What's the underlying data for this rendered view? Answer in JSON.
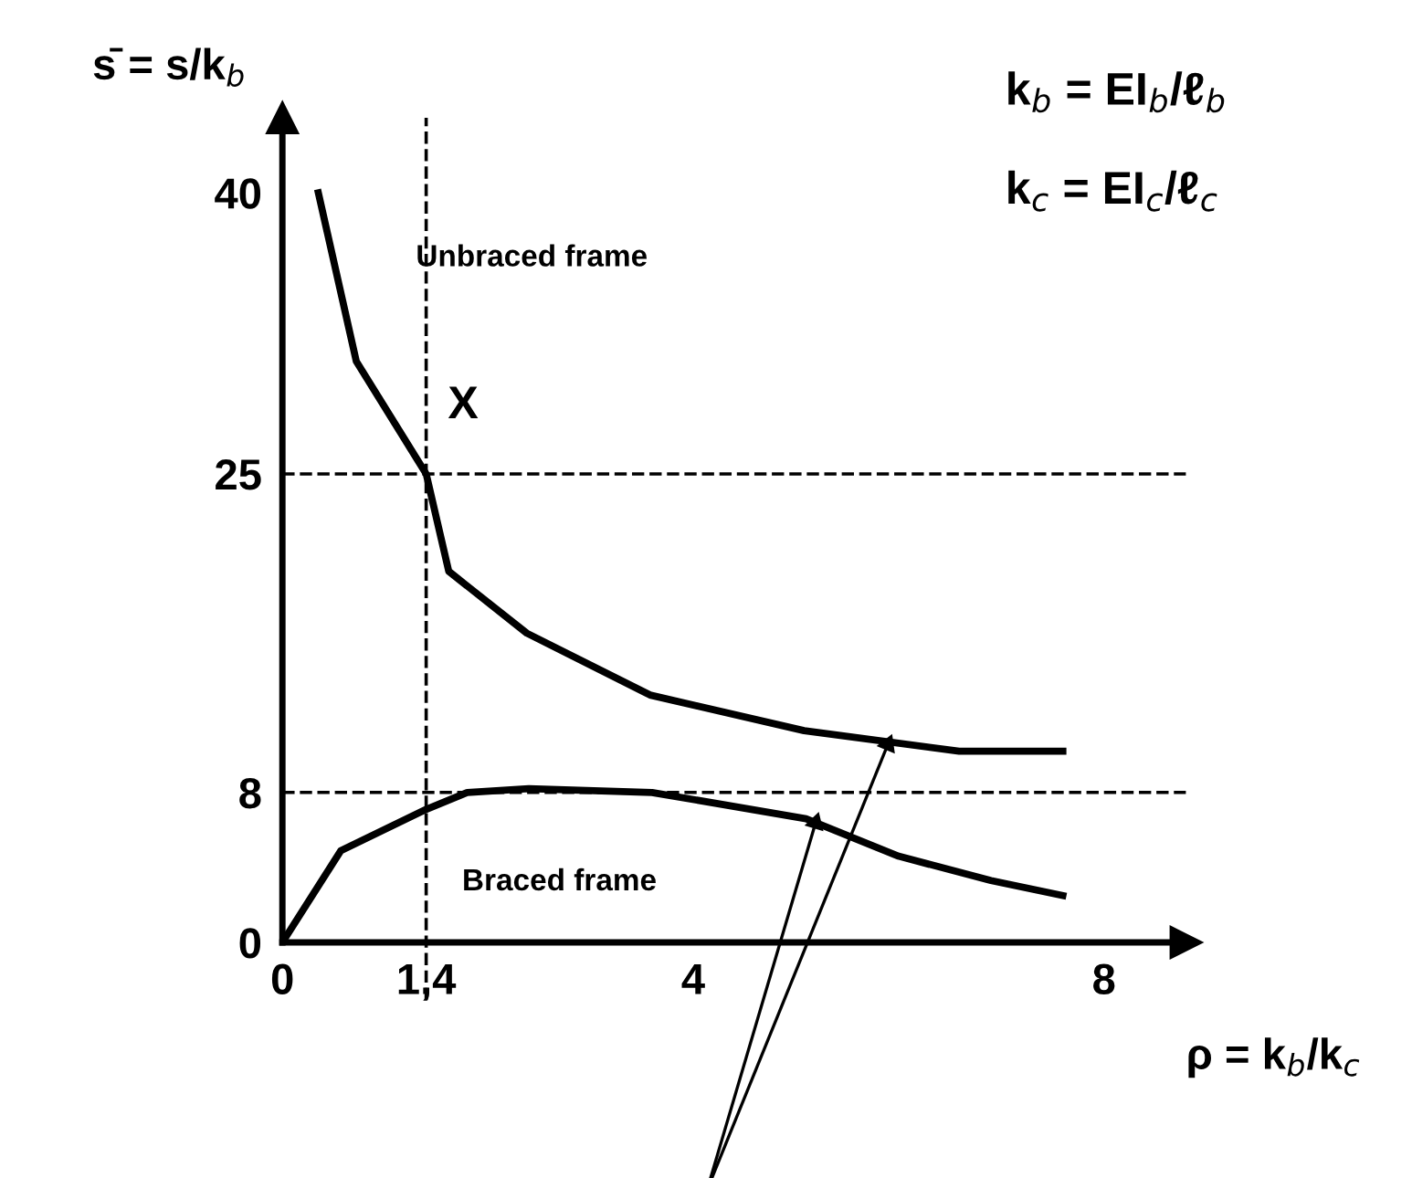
{
  "chart_data": {
    "type": "line",
    "xlabel": "ρ = k$_{b}$/k$_{c}$",
    "ylabel": "s̄ = s/k$_{b}$",
    "series": [
      {
        "name": "Unbraced frame",
        "color": "#000000",
        "x": [
          0.35,
          0.72,
          1.4,
          1.62,
          2.38,
          3.58,
          5.08,
          6.59,
          7.6
        ],
        "values": [
          40,
          31,
          25,
          19.8,
          16.5,
          13.2,
          11.3,
          10.2,
          10.2
        ]
      },
      {
        "name": "Braced frame",
        "color": "#000000",
        "x": [
          0,
          0.57,
          1.4,
          1.8,
          2.4,
          3.6,
          5.1,
          6,
          6.9,
          7.6
        ],
        "values": [
          0,
          4.9,
          7.1,
          8,
          8.2,
          8,
          6.6,
          4.6,
          3.3,
          2.5
        ]
      }
    ],
    "xlim": [
      0,
      8.8
    ],
    "ylim": [
      0,
      44
    ],
    "xticks": [
      0,
      {
        "value": 1.4,
        "label": "1,4"
      },
      4,
      8
    ],
    "yticks": [
      0,
      8,
      25,
      40
    ],
    "ref_lines": [
      {
        "axis": "y",
        "value": 25,
        "line_style": "dashed"
      },
      {
        "axis": "y",
        "value": 8,
        "line_style": "dashed"
      },
      {
        "axis": "x",
        "value": 1.4,
        "line_style": "dashed"
      }
    ],
    "annotations": [
      "X",
      "k$_{b}$ = EI$_{b}$/ℓ$_{b}$",
      "k$_{c}$ = EI$_{c}$/ℓ$_{c}$"
    ],
    "grid": false,
    "legend": false,
    "marker": "none",
    "line_style": "solid"
  }
}
